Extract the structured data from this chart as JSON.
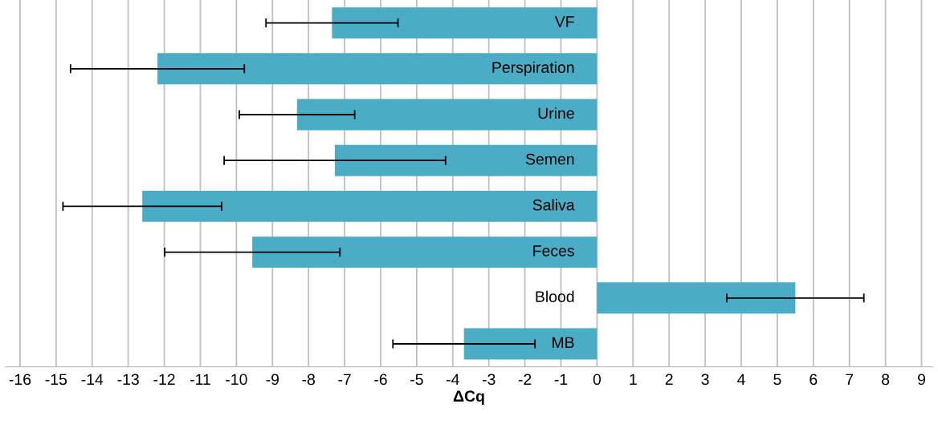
{
  "chart_data": {
    "type": "bar",
    "orientation": "horizontal",
    "xlabel": "ΔCq",
    "categories": [
      "VF",
      "Perspiration",
      "Urine",
      "Semen",
      "Saliva",
      "Feces",
      "Blood",
      "MB"
    ],
    "values": [
      -7.35,
      -12.19,
      -8.32,
      -7.27,
      -12.61,
      -9.56,
      5.5,
      -3.69
    ],
    "errors": [
      1.83,
      2.41,
      1.6,
      3.07,
      2.2,
      2.43,
      1.9,
      1.97
    ],
    "color": "#4bacc6",
    "xlim": [
      -16.4,
      9.3
    ],
    "xticks": [
      -16,
      -15,
      -14,
      -13,
      -12,
      -11,
      -10,
      -9,
      -8,
      -7,
      -6,
      -5,
      -4,
      -3,
      -2,
      -1,
      0,
      1,
      2,
      3,
      4,
      5,
      6,
      7,
      8,
      9
    ],
    "grid": "x"
  }
}
